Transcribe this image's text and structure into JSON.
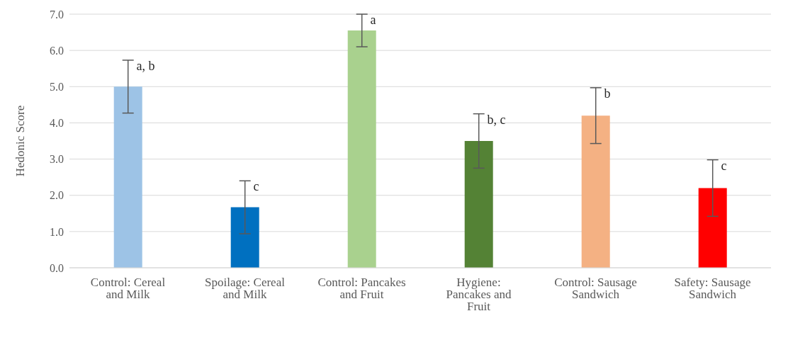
{
  "chart_data": {
    "type": "bar",
    "ylabel": "Hedonic Score",
    "categories": [
      "Control: Cereal and Milk",
      "Spoilage: Cereal and Milk",
      "Control: Pancakes and Fruit",
      "Hygiene: Pancakes and Fruit",
      "Control: Sausage Sandwich",
      "Safety: Sausage Sandwich"
    ],
    "values": [
      5.0,
      1.67,
      6.55,
      3.5,
      4.2,
      2.2
    ],
    "errors": [
      0.73,
      0.73,
      0.45,
      0.75,
      0.77,
      0.78
    ],
    "colors": [
      "#9dc3e6",
      "#0070c0",
      "#a9d18e",
      "#548235",
      "#f4b183",
      "#ff0000"
    ],
    "ylim": [
      0,
      7
    ],
    "yticks": [
      {
        "value": 0,
        "label": "0.0"
      },
      {
        "value": 1,
        "label": "1.0"
      },
      {
        "value": 2,
        "label": "2.0"
      },
      {
        "value": 3,
        "label": "3.0"
      },
      {
        "value": 4,
        "label": "4.0"
      },
      {
        "value": 5,
        "label": "5.0"
      },
      {
        "value": 6,
        "label": "6.0"
      },
      {
        "value": 7,
        "label": "7.0"
      }
    ],
    "grid": "y",
    "annotations": [
      {
        "text": "a, b",
        "x": "Control: Cereal and Milk",
        "y": 5.73
      },
      {
        "text": "c",
        "x": "Spoilage: Cereal and Milk",
        "y": 2.4
      },
      {
        "text": "a",
        "x": "Control: Pancakes and Fruit",
        "y": 7.0
      },
      {
        "text": "b, c",
        "x": "Hygiene: Pancakes and Fruit",
        "y": 4.25
      },
      {
        "text": "b",
        "x": "Control: Sausage Sandwich",
        "y": 4.97
      },
      {
        "text": "c",
        "x": "Safety: Sausage Sandwich",
        "y": 2.98
      }
    ]
  }
}
